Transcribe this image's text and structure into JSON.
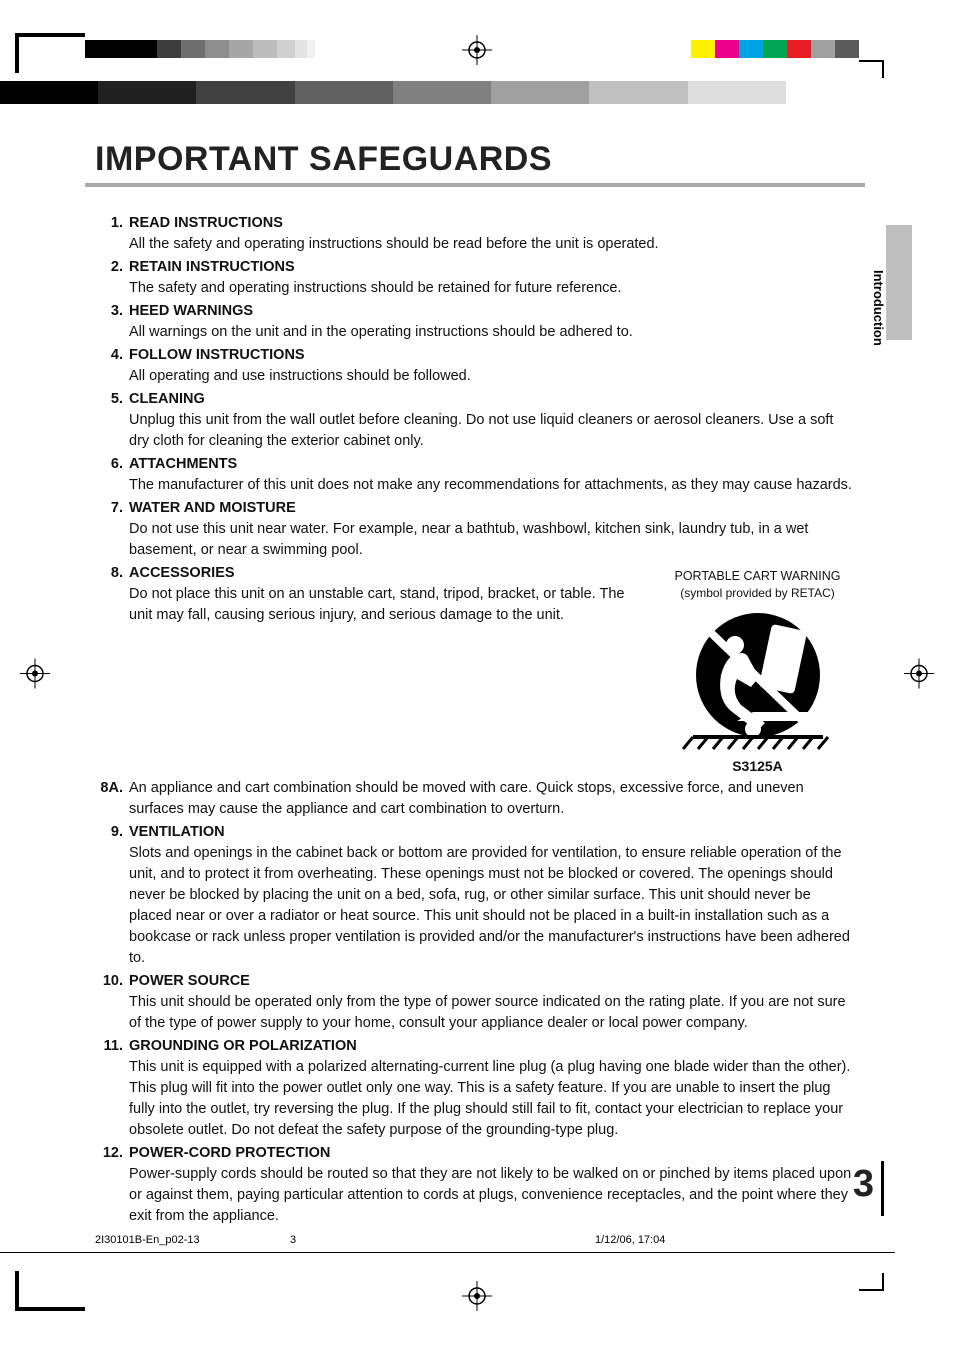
{
  "print_marks": {
    "gray_swatches": [
      "#000000",
      "#000000",
      "#000000",
      "#3d3d3d",
      "#6e6e6e",
      "#8d8d8d",
      "#a6a6a6",
      "#bcbcbc",
      "#d0d0d0",
      "#e3e3e3",
      "#f1f1f1"
    ],
    "gray_swatch_widths": [
      24,
      24,
      24,
      24,
      24,
      24,
      24,
      24,
      18,
      12,
      8
    ],
    "color_swatches": [
      "#fff200",
      "#ec008c",
      "#00a4e4",
      "#00a651",
      "#ec1c24",
      "#a0a0a0",
      "#5b5b5b"
    ],
    "gradient_colors": [
      "#000000",
      "#202020",
      "#404040",
      "#606060",
      "#808080",
      "#a0a0a0",
      "#c0c0c0",
      "#dedede",
      "#ffffff"
    ]
  },
  "title": "IMPORTANT SAFEGUARDS",
  "side_tab": "Introduction",
  "cart_warning": {
    "line1": "PORTABLE CART WARNING",
    "line2": "(symbol provided by RETAC)",
    "code": "S3125A"
  },
  "items": [
    {
      "num": "1.",
      "head": "READ INSTRUCTIONS",
      "text": "All the safety and operating instructions should be read before the unit is operated."
    },
    {
      "num": "2.",
      "head": "RETAIN INSTRUCTIONS",
      "text": "The safety and operating instructions should be retained for future reference."
    },
    {
      "num": "3.",
      "head": "HEED WARNINGS",
      "text": "All warnings on the unit and in the operating instructions should be adhered to."
    },
    {
      "num": "4.",
      "head": "FOLLOW INSTRUCTIONS",
      "text": "All operating and use instructions should be followed."
    },
    {
      "num": "5.",
      "head": "CLEANING",
      "text": "Unplug this unit from the wall outlet before cleaning. Do not use liquid cleaners or aerosol cleaners. Use a soft dry cloth for cleaning the exterior cabinet only."
    },
    {
      "num": "6.",
      "head": "ATTACHMENTS",
      "text": "The manufacturer of this unit does not make any recommendations for attachments, as they may cause hazards."
    },
    {
      "num": "7.",
      "head": "WATER AND MOISTURE",
      "text": "Do not use this unit near water. For example, near a bathtub, washbowl, kitchen sink, laundry tub, in a wet basement, or near a swimming pool."
    },
    {
      "num": "8.",
      "head": "ACCESSORIES",
      "text": "Do not place this unit on an unstable cart, stand, tripod, bracket, or table. The unit may fall, causing serious injury, and serious damage to the unit."
    },
    {
      "num": "8A.",
      "head": "",
      "text": "An appliance and cart combination should be moved with care. Quick stops, excessive force, and uneven surfaces may cause the appliance and cart combination to overturn."
    },
    {
      "num": "9.",
      "head": "VENTILATION",
      "text": "Slots and openings in the cabinet back or bottom are provided for ventilation, to ensure reliable operation of the unit, and to protect it from overheating. These openings must not be blocked or covered. The openings should never be blocked by placing the unit on a bed, sofa, rug, or other similar surface. This unit should never be placed near or over a radiator or heat source. This unit should not be placed in a built-in installation such as a bookcase or rack unless proper ventilation is provided and/or the manufacturer's instructions have been adhered to."
    },
    {
      "num": "10.",
      "head": "POWER SOURCE",
      "text": "This unit should be operated only from the type of power source indicated on the rating plate. If you are not sure of the type of power supply to your home, consult your appliance dealer or local power company."
    },
    {
      "num": "11.",
      "head": "GROUNDING OR POLARIZATION",
      "text": "This unit is equipped with a polarized alternating-current line plug (a plug having one blade wider than the other). This plug will fit into the power outlet only one way. This is a safety feature. If you are unable to insert the plug fully into the outlet, try reversing the plug. If the plug should still fail to fit, contact your electrician to replace your obsolete outlet. Do not defeat the safety purpose of the grounding-type plug."
    },
    {
      "num": "12.",
      "head": "POWER-CORD PROTECTION",
      "text": "Power-supply cords should be routed so that they are not likely to be walked on or pinched by items placed upon or against them, paying particular attention to cords at plugs, convenience receptacles, and the point where they exit from the appliance."
    }
  ],
  "page_number": "3",
  "footer": {
    "file": "2I30101B-En_p02-13",
    "page": "3",
    "date": "1/12/06, 17:04"
  }
}
